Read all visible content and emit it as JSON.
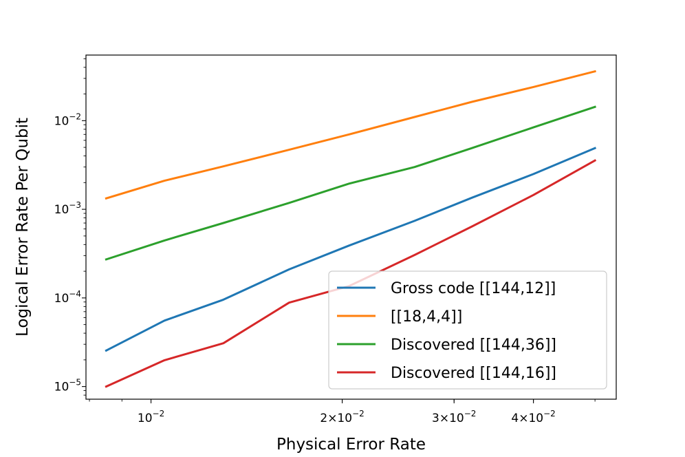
{
  "chart_data": {
    "type": "line",
    "title": "",
    "xlabel": "Physical Error Rate",
    "ylabel": "Logical Error Rate Per Qubit",
    "xscale": "log",
    "yscale": "log",
    "xlim": [
      0.0079,
      0.054
    ],
    "ylim": [
      7.2e-06,
      0.055
    ],
    "grid": false,
    "legend_position": "lower-right",
    "x_ticks": [
      {
        "value": 0.01,
        "base": "10",
        "exp": "−2",
        "mult": ""
      },
      {
        "value": 0.02,
        "base": "10",
        "exp": "−2",
        "mult": "2×"
      },
      {
        "value": 0.03,
        "base": "10",
        "exp": "−2",
        "mult": "3×"
      },
      {
        "value": 0.04,
        "base": "10",
        "exp": "−2",
        "mult": "4×"
      }
    ],
    "y_ticks": [
      {
        "value": 1e-05,
        "base": "10",
        "exp": "−5"
      },
      {
        "value": 0.0001,
        "base": "10",
        "exp": "−4"
      },
      {
        "value": 0.001,
        "base": "10",
        "exp": "−3"
      },
      {
        "value": 0.01,
        "base": "10",
        "exp": "−2"
      }
    ],
    "x": [
      0.0085,
      0.0105,
      0.013,
      0.0165,
      0.0205,
      0.026,
      0.032,
      0.04,
      0.05
    ],
    "series": [
      {
        "name": "Gross code [[144,12]]",
        "color": "#1f77b4",
        "values": [
          2.55e-05,
          5.55e-05,
          9.55e-05,
          0.00021,
          0.00039,
          0.00074,
          0.00135,
          0.0025,
          0.0049
        ]
      },
      {
        "name": "[[18,4,4]]",
        "color": "#ff7f0e",
        "values": [
          0.00133,
          0.0021,
          0.00305,
          0.0047,
          0.007,
          0.011,
          0.0163,
          0.024,
          0.036
        ]
      },
      {
        "name": "Discovered [[144,36]]",
        "color": "#2ca02c",
        "values": [
          0.000272,
          0.000445,
          0.0007,
          0.00118,
          0.00195,
          0.003,
          0.0049,
          0.0084,
          0.0143
        ]
      },
      {
        "name": "Discovered [[144,16]]",
        "color": "#d62728",
        "values": [
          1e-05,
          1.98e-05,
          3.08e-05,
          8.85e-05,
          0.000136,
          0.000305,
          0.00064,
          0.00145,
          0.00355
        ]
      }
    ]
  }
}
